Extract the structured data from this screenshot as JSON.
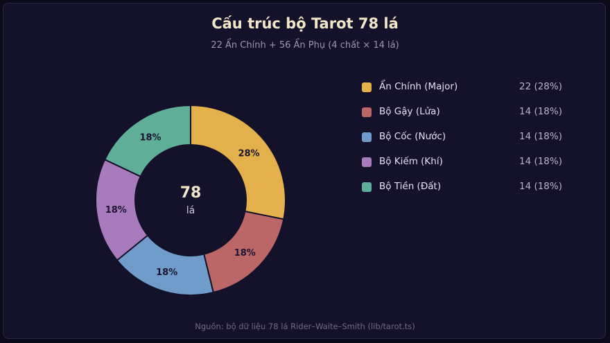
{
  "chart_data": {
    "type": "pie",
    "title": "Cấu trúc bộ Tarot 78 lá",
    "subtitle": "22 Ẩn Chính + 56 Ẩn Phụ (4 chất × 14 lá)",
    "center_value": "78",
    "center_unit": "lá",
    "footer": "Nguồn: bộ dữ liệu 78 lá Rider–Waite–Smith (lib/tarot.ts)",
    "slices": [
      {
        "label": "Ẩn Chính (Major)",
        "value": 22,
        "percent": "28%",
        "legend_value": "22 (28%)",
        "color": "#e3b04b"
      },
      {
        "label": "Bộ Gậy (Lửa)",
        "value": 14,
        "percent": "18%",
        "legend_value": "14 (18%)",
        "color": "#bb6767"
      },
      {
        "label": "Bộ Cốc (Nước)",
        "value": 14,
        "percent": "18%",
        "legend_value": "14 (18%)",
        "color": "#6f9ccb"
      },
      {
        "label": "Bộ Kiếm (Khí)",
        "value": 14,
        "percent": "18%",
        "legend_value": "14 (18%)",
        "color": "#a97bbd"
      },
      {
        "label": "Bộ Tiền (Đất)",
        "value": 14,
        "percent": "18%",
        "legend_value": "14 (18%)",
        "color": "#5fae98"
      }
    ],
    "legend_position": "right",
    "label_color": "#1a1530",
    "center_color": "#f1e6c8",
    "center_unit_color": "#cfc9df",
    "background": "#14112a"
  }
}
